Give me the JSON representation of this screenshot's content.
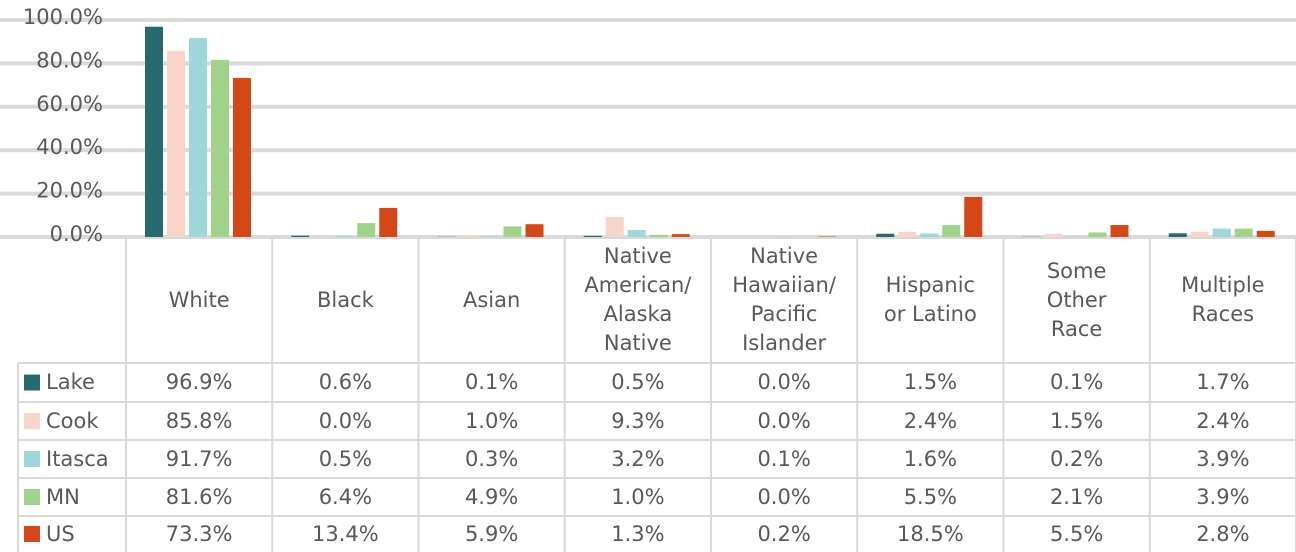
{
  "chart_data": {
    "type": "bar",
    "categories": [
      "White",
      "Black",
      "Asian",
      "Native\nAmerican/\nAlaska\nNative",
      "Native\nHawaiian/\nPacific\nIslander",
      "Hispanic\nor Latino",
      "Some\nOther\nRace",
      "Multiple\nRaces"
    ],
    "series": [
      {
        "name": "Lake",
        "color": "#266a70",
        "values": [
          96.9,
          0.6,
          0.1,
          0.5,
          0.0,
          1.5,
          0.1,
          1.7
        ],
        "value_labels": [
          "96.9%",
          "0.6%",
          "0.1%",
          "0.5%",
          "0.0%",
          "1.5%",
          "0.1%",
          "1.7%"
        ]
      },
      {
        "name": "Cook",
        "color": "#f9d5c9",
        "values": [
          85.8,
          0.0,
          1.0,
          9.3,
          0.0,
          2.4,
          1.5,
          2.4
        ],
        "value_labels": [
          "85.8%",
          "0.0%",
          "1.0%",
          "9.3%",
          "0.0%",
          "2.4%",
          "1.5%",
          "2.4%"
        ]
      },
      {
        "name": "Itasca",
        "color": "#9dd6db",
        "values": [
          91.7,
          0.5,
          0.3,
          3.2,
          0.1,
          1.6,
          0.2,
          3.9
        ],
        "value_labels": [
          "91.7%",
          "0.5%",
          "0.3%",
          "3.2%",
          "0.1%",
          "1.6%",
          "0.2%",
          "3.9%"
        ]
      },
      {
        "name": "MN",
        "color": "#a1d28a",
        "values": [
          81.6,
          6.4,
          4.9,
          1.0,
          0.0,
          5.5,
          2.1,
          3.9
        ],
        "value_labels": [
          "81.6%",
          "6.4%",
          "4.9%",
          "1.0%",
          "0.0%",
          "5.5%",
          "2.1%",
          "3.9%"
        ]
      },
      {
        "name": "US",
        "color": "#d34816",
        "values": [
          73.3,
          13.4,
          5.9,
          1.3,
          0.2,
          18.5,
          5.5,
          2.8
        ],
        "value_labels": [
          "73.3%",
          "13.4%",
          "5.9%",
          "1.3%",
          "0.2%",
          "18.5%",
          "5.5%",
          "2.8%"
        ]
      }
    ],
    "ylim": [
      0,
      100
    ],
    "yticks": [
      {
        "value": 0,
        "label": "0.0%"
      },
      {
        "value": 20,
        "label": "20.0%"
      },
      {
        "value": 40,
        "label": "40.0%"
      },
      {
        "value": 60,
        "label": "60.0%"
      },
      {
        "value": 80,
        "label": "80.0%"
      },
      {
        "value": 100,
        "label": "100.0%"
      }
    ],
    "grid": true
  }
}
